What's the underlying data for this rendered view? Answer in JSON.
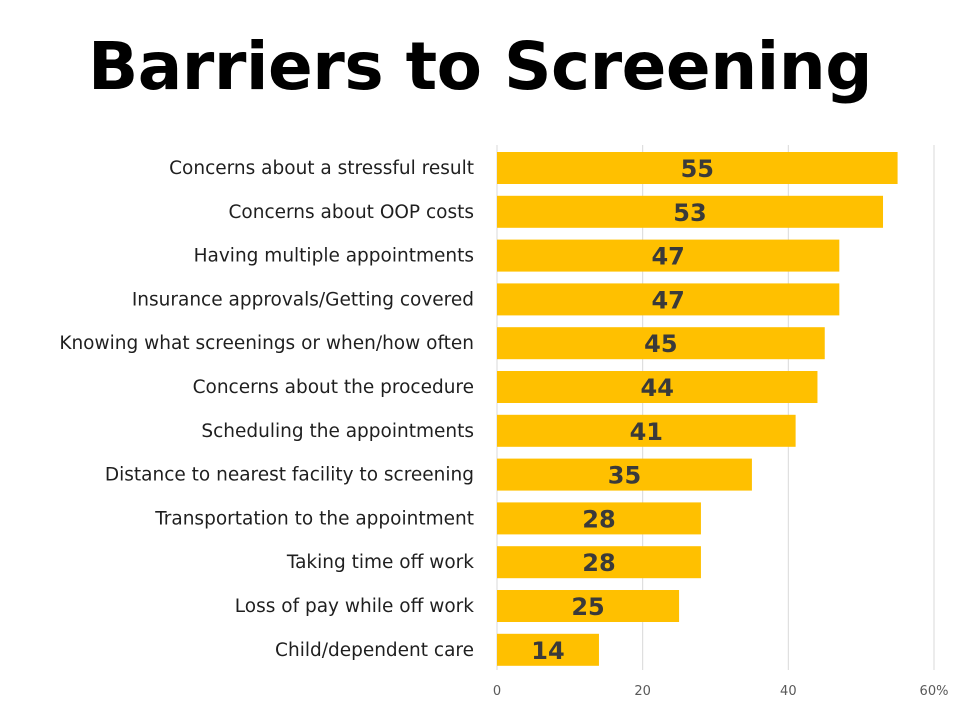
{
  "chart_data": {
    "type": "bar",
    "orientation": "horizontal",
    "title": "Barriers to Screening",
    "categories": [
      "Concerns about a stressful result",
      "Concerns about OOP costs",
      "Having multiple appointments",
      "Insurance approvals/Getting covered",
      "Knowing what screenings or when/how often",
      "Concerns about the procedure",
      "Scheduling the appointments",
      "Distance to nearest facility to screening",
      "Transportation to the appointment",
      "Taking time off work",
      "Loss of pay while off work",
      "Child/dependent care"
    ],
    "values": [
      55,
      53,
      47,
      47,
      45,
      44,
      41,
      35,
      28,
      28,
      25,
      14
    ],
    "xlim": [
      0,
      60
    ],
    "x_ticks": [
      "0",
      "20",
      "40",
      "60%"
    ],
    "grid": true,
    "legend": "none",
    "bar_color": "#FFC000",
    "gridline_color": "#D9D9D9"
  }
}
